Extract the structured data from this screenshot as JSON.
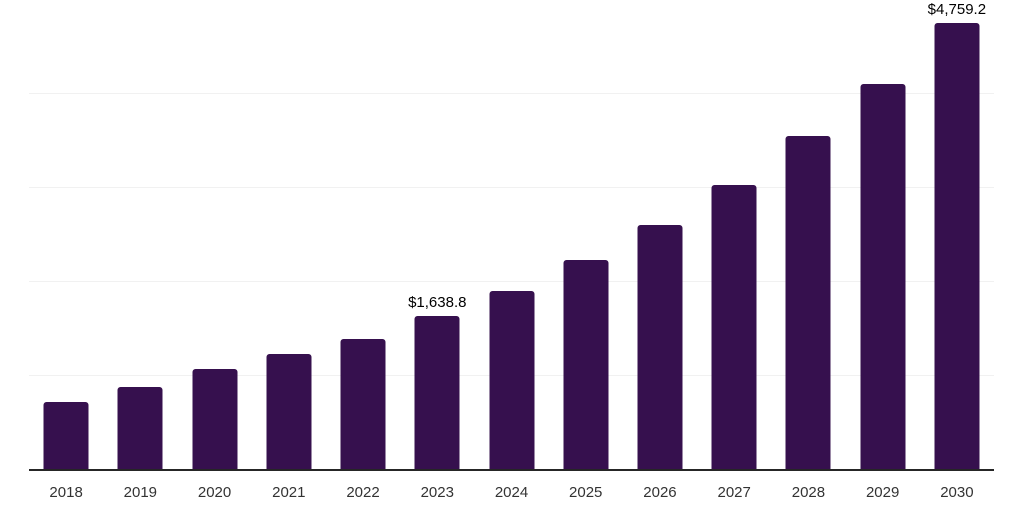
{
  "chart_data": {
    "type": "bar",
    "title": "",
    "xlabel": "",
    "ylabel": "",
    "categories": [
      "2018",
      "2019",
      "2020",
      "2021",
      "2022",
      "2023",
      "2024",
      "2025",
      "2026",
      "2027",
      "2028",
      "2029",
      "2030"
    ],
    "values": [
      725,
      885,
      1075,
      1235,
      1395,
      1638.8,
      1905,
      2235,
      2605,
      3030,
      3550,
      4105,
      4759.2
    ],
    "ylim": [
      0,
      5000
    ],
    "gridline_step": 1000,
    "grid_on": true,
    "legend": "none",
    "y_axis_labels_visible": false,
    "data_labels": {
      "2023": "$1,638.8",
      "2030": "$4,759.2"
    },
    "colors": {
      "bar": "#36104e",
      "grid": "#f1f1f1",
      "axis": "#262626",
      "tick_label": "#333333",
      "data_label": "#000000",
      "background": "#ffffff"
    }
  }
}
